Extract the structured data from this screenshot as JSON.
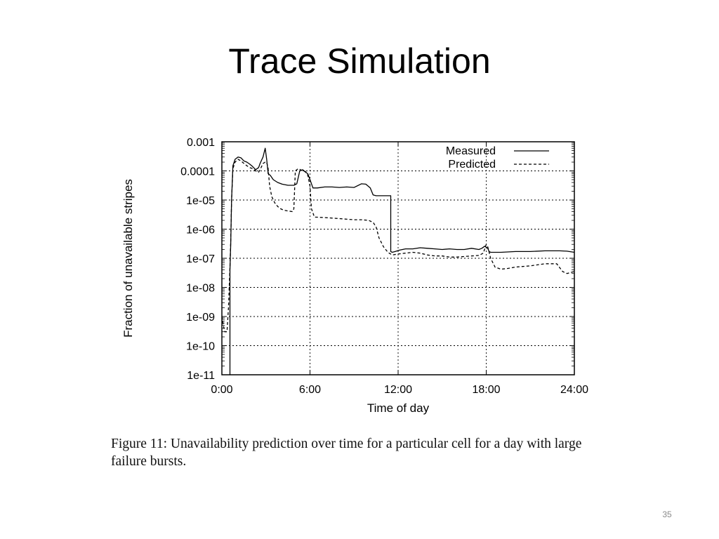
{
  "slide": {
    "title": "Trace Simulation",
    "page_number": "35"
  },
  "caption": "Figure 11: Unavailability prediction over time for a particular cell for a day with large failure bursts.",
  "chart_data": {
    "type": "line",
    "title": "",
    "xlabel": "Time of day",
    "ylabel": "Fraction of unavailable stripes",
    "x_unit": "hours",
    "xlim": [
      0,
      24
    ],
    "ylim": [
      1e-11,
      0.001
    ],
    "yscale": "log",
    "x_ticks": [
      0,
      6,
      12,
      18,
      24
    ],
    "x_tick_labels": [
      "0:00",
      "6:00",
      "12:00",
      "18:00",
      "24:00"
    ],
    "y_ticks": [
      1e-11,
      1e-10,
      1e-09,
      1e-08,
      1e-07,
      1e-06,
      1e-05,
      0.0001,
      0.001
    ],
    "y_tick_labels": [
      "1e-11",
      "1e-10",
      "1e-09",
      "1e-08",
      "1e-07",
      "1e-06",
      "1e-05",
      "0.0001",
      "0.001"
    ],
    "grid": true,
    "legend_position": "top-right",
    "series": [
      {
        "name": "Measured",
        "style": "solid",
        "color": "#000000",
        "x": [
          0.55,
          0.55,
          0.6,
          0.66,
          0.75,
          0.9,
          1.1,
          1.3,
          1.5,
          1.7,
          1.9,
          2.1,
          2.3,
          2.5,
          2.6,
          2.8,
          2.95,
          3.05,
          3.15,
          3.3,
          3.5,
          3.8,
          4.1,
          4.5,
          4.9,
          5.1,
          5.3,
          5.5,
          5.7,
          5.85,
          6.0,
          6.2,
          6.5,
          7.0,
          7.5,
          8.0,
          8.5,
          9.0,
          9.5,
          9.8,
          10.1,
          10.3,
          10.5,
          11.0,
          11.5,
          11.5,
          11.6,
          11.8,
          12.1,
          12.5,
          13.0,
          13.5,
          14.0,
          14.5,
          15.0,
          15.5,
          16.0,
          16.5,
          17.0,
          17.5,
          17.7,
          17.9,
          18.1,
          18.2,
          18.3,
          19.0,
          20.0,
          21.0,
          22.0,
          23.0,
          23.5,
          24.0
        ],
        "y": [
          1e-11,
          4e-08,
          3e-07,
          1e-05,
          0.00015,
          0.00025,
          0.0003,
          0.00028,
          0.00022,
          0.0002,
          0.00017,
          0.00014,
          0.00011,
          0.00013,
          0.00018,
          0.0003,
          0.0006,
          0.00025,
          8e-05,
          7e-05,
          5e-05,
          4e-05,
          3.5e-05,
          3.2e-05,
          3.2e-05,
          3.6e-05,
          0.0001,
          0.00011,
          9e-05,
          8e-05,
          5e-05,
          2.6e-05,
          2.6e-05,
          2.8e-05,
          2.8e-05,
          2.7e-05,
          2.8e-05,
          2.7e-05,
          3.6e-05,
          3.5e-05,
          2.6e-05,
          1.5e-05,
          1.4e-05,
          1.4e-05,
          1.4e-05,
          1.7e-07,
          1.6e-07,
          1.7e-07,
          1.9e-07,
          2.1e-07,
          2.1e-07,
          2.3e-07,
          2.2e-07,
          2.1e-07,
          2e-07,
          2.1e-07,
          2e-07,
          2e-07,
          2.2e-07,
          2e-07,
          2.2e-07,
          2.6e-07,
          2.2e-07,
          1.7e-07,
          1.6e-07,
          1.6e-07,
          1.7e-07,
          1.7e-07,
          1.8e-07,
          1.8e-07,
          1.75e-07,
          1.6e-07
        ]
      },
      {
        "name": "Predicted",
        "style": "dashed",
        "color": "#000000",
        "x": [
          0.0,
          0.1,
          0.2,
          0.35,
          0.45,
          0.55,
          0.6,
          0.66,
          0.75,
          0.9,
          1.1,
          1.3,
          1.5,
          1.7,
          1.9,
          2.1,
          2.3,
          2.5,
          2.6,
          2.8,
          2.95,
          3.05,
          3.15,
          3.25,
          3.4,
          3.6,
          3.8,
          4.0,
          4.2,
          4.5,
          4.8,
          4.9,
          5.0,
          5.2,
          5.5,
          5.7,
          5.85,
          6.0,
          6.1,
          6.3,
          7.0,
          8.0,
          9.0,
          9.5,
          10.0,
          10.3,
          10.5,
          10.7,
          11.0,
          11.3,
          11.6,
          12.0,
          12.5,
          13.0,
          13.5,
          14.0,
          14.5,
          15.0,
          15.5,
          16.0,
          16.5,
          17.0,
          17.5,
          17.8,
          18.0,
          18.1,
          18.3,
          18.6,
          19.0,
          19.5,
          20.0,
          21.0,
          22.0,
          22.8,
          23.2,
          23.5,
          24.0
        ],
        "y": [
          1e-09,
          5e-10,
          3e-10,
          3e-10,
          2e-09,
          5e-08,
          4e-07,
          1e-05,
          0.00012,
          0.0002,
          0.00025,
          0.00022,
          0.00018,
          0.00015,
          0.00013,
          0.00012,
          0.0001,
          9e-05,
          0.00011,
          0.00018,
          0.0002,
          0.0002,
          0.00012,
          3e-05,
          1.3e-05,
          8e-06,
          6e-06,
          5e-06,
          4.5e-06,
          4.2e-06,
          4e-06,
          5e-06,
          0.0001,
          0.00012,
          0.0001,
          9.5e-05,
          7e-05,
          3e-05,
          5e-06,
          2.6e-06,
          2.5e-06,
          2.3e-06,
          2.1e-06,
          2.1e-06,
          2e-06,
          1.7e-06,
          1.2e-06,
          5e-07,
          2.5e-07,
          1.6e-07,
          1.3e-07,
          1.4e-07,
          1.5e-07,
          1.6e-07,
          1.5e-07,
          1.3e-07,
          1.2e-07,
          1.2e-07,
          1.1e-07,
          1.1e-07,
          1.15e-07,
          1.2e-07,
          1.25e-07,
          1.5e-07,
          3e-07,
          2.5e-07,
          1e-07,
          5e-08,
          4.2e-08,
          4.5e-08,
          5e-08,
          5.5e-08,
          6.5e-08,
          6.5e-08,
          3.5e-08,
          3e-08,
          3.5e-08
        ]
      }
    ]
  }
}
